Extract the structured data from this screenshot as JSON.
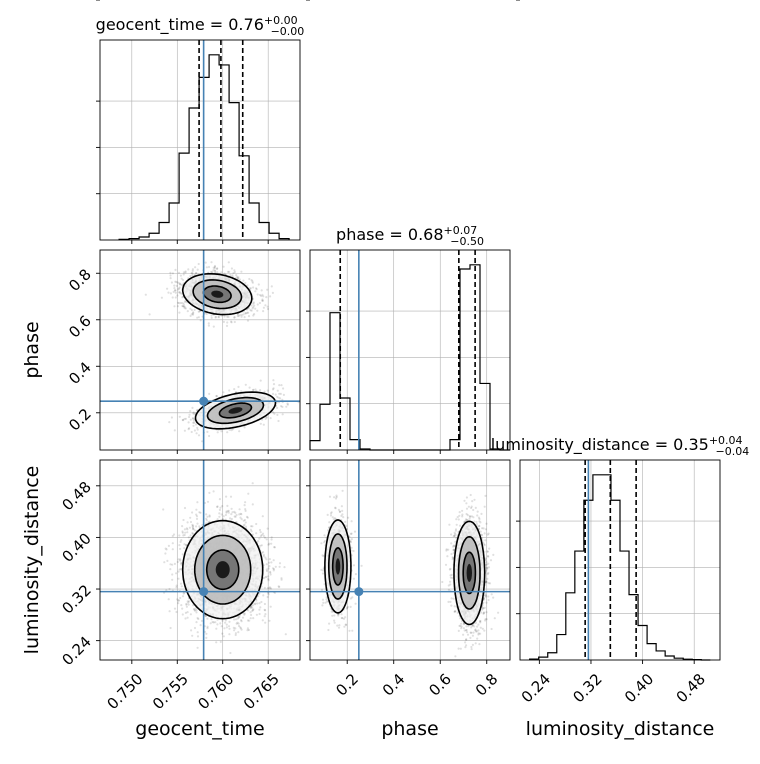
{
  "chart_data": {
    "type": "corner",
    "colors": {
      "truth": "#4682b4",
      "hist": "#000000",
      "grid": "#b0b0b0",
      "points": "#000000"
    },
    "parameters": [
      {
        "name": "geocent_time",
        "xlabel": "geocent_time",
        "ylabel": "",
        "title": {
          "main": "geocent_time = 0.76",
          "sup": "+0.00",
          "sub": "−0.00"
        },
        "range": [
          0.7465,
          0.7685
        ],
        "ticks": [
          0.75,
          0.755,
          0.76,
          0.765
        ],
        "tick_labels": [
          "0.750",
          "0.755",
          "0.760",
          "0.765"
        ],
        "truth": 0.7579,
        "quantiles": [
          0.7574,
          0.7598,
          0.7622
        ],
        "bin_edges": [
          0.7486,
          0.7497,
          0.7508,
          0.7519,
          0.753,
          0.7541,
          0.7552,
          0.7563,
          0.7574,
          0.7585,
          0.7596,
          0.7607,
          0.7618,
          0.7629,
          0.764,
          0.7651,
          0.7662,
          0.7673
        ],
        "counts": [
          2,
          4,
          9,
          20,
          52,
          110,
          258,
          392,
          483,
          550,
          520,
          408,
          250,
          110,
          52,
          20,
          4
        ]
      },
      {
        "name": "phase",
        "xlabel": "phase",
        "ylabel": "phase",
        "title": {
          "main": "phase = 0.68",
          "sup": "+0.07",
          "sub": "−0.50"
        },
        "range": [
          0.04,
          0.9
        ],
        "ticks": [
          0.2,
          0.4,
          0.6,
          0.8
        ],
        "tick_labels": [
          "0.2",
          "0.4",
          "0.6",
          "0.8"
        ],
        "truth": 0.25,
        "quantiles": [
          0.17,
          0.68,
          0.75
        ],
        "bin_edges": [
          0.04,
          0.083,
          0.126,
          0.169,
          0.212,
          0.255,
          0.298,
          0.341,
          0.384,
          0.427,
          0.47,
          0.513,
          0.556,
          0.599,
          0.642,
          0.685,
          0.728,
          0.771,
          0.814,
          0.857,
          0.9
        ],
        "counts": [
          45,
          220,
          660,
          250,
          50,
          5,
          0,
          0,
          0,
          0,
          0,
          0,
          0,
          0,
          50,
          870,
          890,
          320,
          5,
          0
        ]
      },
      {
        "name": "luminosity_distance",
        "xlabel": "luminosity_distance",
        "ylabel": "luminosity_distance",
        "title": {
          "main": "luminosity_distance = 0.35",
          "sup": "+0.04",
          "sub": "−0.04"
        },
        "range": [
          0.21,
          0.52
        ],
        "ticks": [
          0.24,
          0.32,
          0.4,
          0.48
        ],
        "tick_labels": [
          "0.24",
          "0.32",
          "0.40",
          "0.48"
        ],
        "truth": 0.316,
        "quantiles": [
          0.311,
          0.35,
          0.39
        ],
        "bin_edges": [
          0.225,
          0.239,
          0.253,
          0.267,
          0.281,
          0.295,
          0.309,
          0.323,
          0.337,
          0.351,
          0.365,
          0.379,
          0.393,
          0.407,
          0.421,
          0.435,
          0.449,
          0.463,
          0.477,
          0.491,
          0.505
        ],
        "counts": [
          5,
          16,
          40,
          140,
          370,
          600,
          880,
          1020,
          1020,
          880,
          600,
          360,
          190,
          90,
          50,
          22,
          10,
          4,
          2,
          0
        ]
      }
    ],
    "pairs": [
      {
        "x": "geocent_time",
        "y": "phase",
        "blobs": [
          {
            "mx": 0.7594,
            "my": 0.71,
            "sx": 0.0019,
            "sy": 0.043,
            "w": 0.7,
            "tilt": -0.2
          },
          {
            "mx": 0.7614,
            "my": 0.21,
            "sx": 0.0022,
            "sy": 0.036,
            "w": 0.3,
            "tilt": 0.45
          }
        ]
      },
      {
        "x": "geocent_time",
        "y": "luminosity_distance",
        "blobs": [
          {
            "mx": 0.76,
            "my": 0.35,
            "sx": 0.0022,
            "sy": 0.038,
            "w": 1.0,
            "tilt": 0.0
          }
        ]
      },
      {
        "x": "phase",
        "y": "luminosity_distance",
        "blobs": [
          {
            "mx": 0.16,
            "my": 0.355,
            "sx": 0.028,
            "sy": 0.036,
            "w": 0.3,
            "tilt": 0.0
          },
          {
            "mx": 0.725,
            "my": 0.345,
            "sx": 0.033,
            "sy": 0.04,
            "w": 0.7,
            "tilt": 0.0
          }
        ]
      }
    ]
  }
}
